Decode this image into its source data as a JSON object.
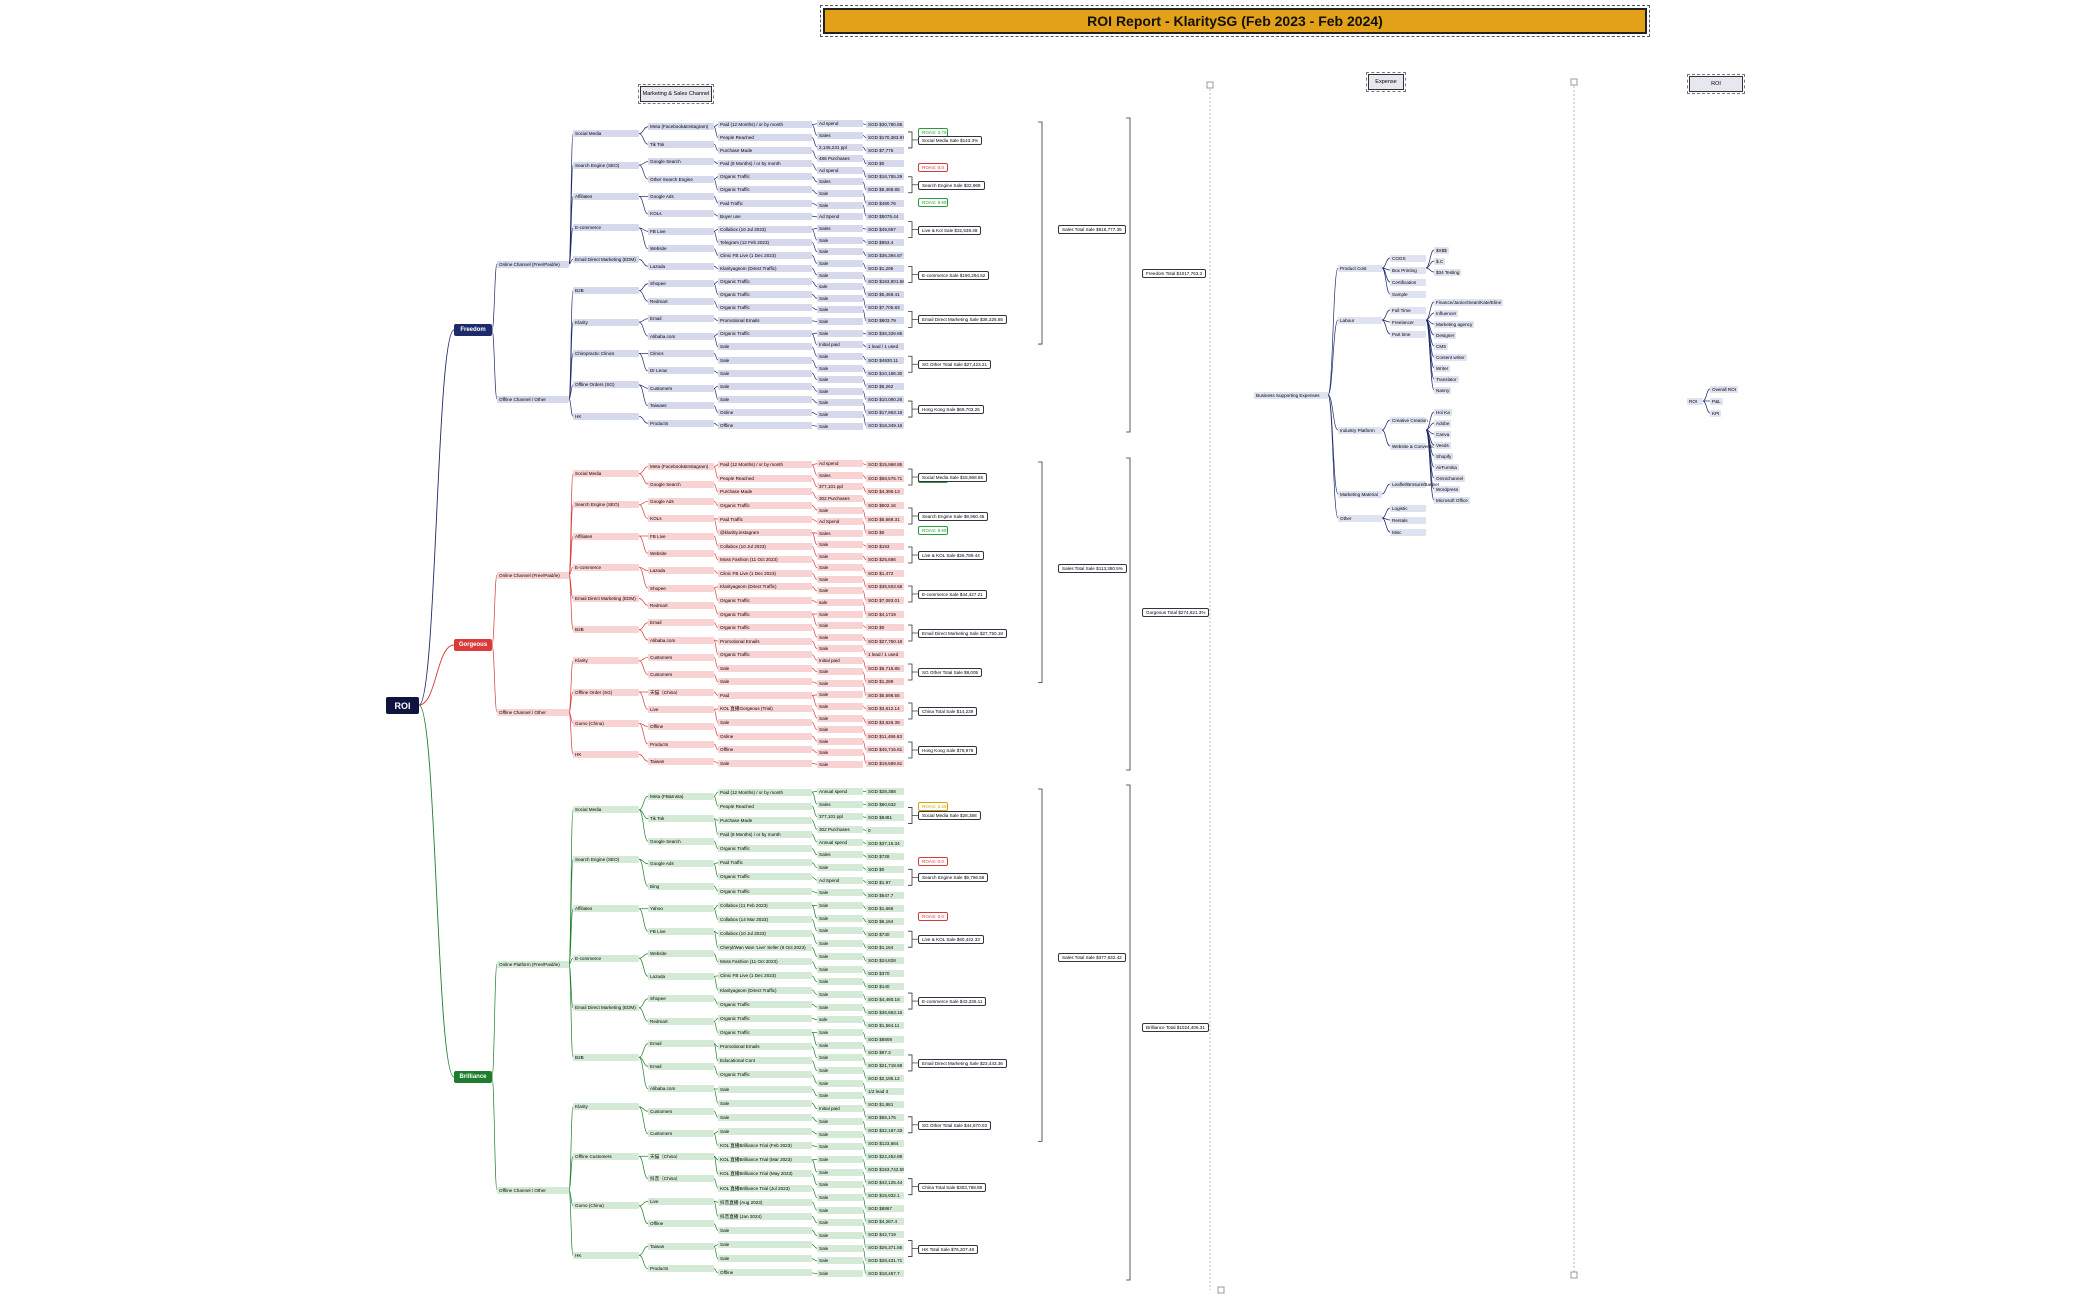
{
  "title": "ROI Report - KlaritySG (Feb 2023 - Feb 2024)",
  "headers": {
    "channel": "Marketing & Sales Channel",
    "expense": "Expense",
    "roi": "ROI"
  },
  "root": "ROI",
  "brands": {
    "freedom": {
      "label": "Freedom",
      "color": "#1f2a6b",
      "fill": "#d6d9ec"
    },
    "gorgeous": {
      "label": "Gorgeous",
      "color": "#d93a3a",
      "fill": "#f9d3d3"
    },
    "brilliance": {
      "label": "Brilliance",
      "color": "#1e7d2c",
      "fill": "#d5ead6"
    }
  },
  "freedom": {
    "channels": [
      "Online Channel (Free/Paid/ie)",
      "Offline Channel / Other"
    ],
    "l2": [
      "Social Media",
      "Search Engine (SEO)",
      "Affiliates",
      "E-commerce",
      "Email Direct Marketing (EDM)",
      "B2B",
      "Klarity",
      "Chiropractic Clinics",
      "Offline Orders (SG)",
      "HK"
    ],
    "l3": [
      "Meta (Facebook&Instagram)",
      "Tik Tok",
      "Google Search",
      "Other Search Engine",
      "Google Ads",
      "KOLs",
      "FB Live",
      "Website",
      "Lazada",
      "Shopee",
      "Redmart",
      "Email",
      "Alibaba.com",
      "Clinics",
      "Dr Leow",
      "Customers",
      "Taiwaes",
      "Products"
    ],
    "l4": [
      "Paid (12 Months) / or by month",
      "People Reached",
      "Purchase Made",
      "Paid (8 Months) / or by month",
      "Organic Traffic",
      "Organic Traffic",
      "Paid Traffic",
      "Buyer use",
      "Collabox (10 Jul 2023)",
      "Telegram (12 Feb 2023)",
      "Clinic FB Live (1 Dec 2023)",
      "Klarityagsom (Direct Traffic)",
      "Organic Traffic",
      "Organic Traffic",
      "Organic Traffic",
      "Promotional Emails",
      "Organic Traffic",
      "Sale",
      "Sale",
      "Sale",
      "Sale",
      "Sale",
      "Online",
      "Offline"
    ],
    "l5": [
      "Ad spend",
      "Sales",
      "2,145,231 ppl",
      "486 Purchases",
      "Ad spend",
      "Sales",
      "Sale",
      "Sale",
      "Ad Spend",
      "Sales",
      "Sale",
      "Sale",
      "Sale",
      "Sale",
      "sale",
      "Sale",
      "Sale",
      "Sale",
      "Sale",
      "Initial paid",
      "Sale",
      "Sale",
      "Sale",
      "Sale",
      "Sale",
      "Sale",
      "Sale"
    ],
    "l6": [
      "SGD $30,780.85",
      "SGD $170,383.97",
      "SGD $7,775",
      "SGD $0",
      "SGD $16,755.29",
      "SGD $5,468.85",
      "SGD $480.76",
      "SGD $5075.44",
      "SGD $49,957",
      "SGD $953.4",
      "SGD $36,394.67",
      "SGD $1,295",
      "SGD $163,901.58",
      "SGD $5,469.41",
      "SGD $7,705.83",
      "SGD $803.79",
      "SGD $36,326.85",
      "1 lead / 1 used",
      "SGD $4930.11",
      "SGD $10,186.30",
      "SGD $5,262",
      "SGD $10,090.26",
      "SGD $17,963.18",
      "SGD $18,349.16"
    ],
    "roas": [
      "ROAS: 3.79",
      "ROAS: 0.0",
      "ROAS: 9.69"
    ],
    "totals": [
      "Social Media Sale $143.3%",
      "Search Engine Sale $32,969",
      "Live & Kol Sale $32,538.48",
      "E-commerce Sale $190,294.52",
      "Email Direct Marketing Sale $36,326.85",
      "SG Other Total Sale $27,423.21",
      "Hong Kong Sale $69,703.26"
    ],
    "sum": "Sales Total Sale $616,777.35",
    "grand": "Freedom Total $1017,763.3"
  },
  "gorgeous": {
    "channels": [
      "Online Channel (Free/Paid/ie)",
      "Offline Channel / Other"
    ],
    "l2": [
      "Social Media",
      "Search Engine (SEO)",
      "Affiliates",
      "E-commerce",
      "Email Direct Marketing (EDM)",
      "B2B",
      "Klarity",
      "Offline Order (SG)",
      "Gumo (China)",
      "HK"
    ],
    "l3": [
      "Meta (Facebook&Instagram)",
      "Google Search",
      "Google Ads",
      "KOLs",
      "FB Live",
      "Website",
      "Lazada",
      "Shopee",
      "Redmart",
      "Email",
      "Alibaba.com",
      "Customers",
      "Customers",
      "天猫（China）",
      "Live",
      "Offline",
      "Products",
      "Taiwan"
    ],
    "l4": [
      "Paid (12 Months) / or by month",
      "People Reached",
      "Purchase Made",
      "Organic Traffic",
      "Paid Traffic",
      "@klaritty.instagram",
      "Collabox (10 Jul 2023)",
      "Moss Fashion (11 Oct 2023)",
      "Clinic FB Live (1 Dec 2023)",
      "Klarityagsom (Direct Traffic)",
      "Organic Traffic",
      "Organic Traffic",
      "Organic Traffic",
      "Promotional Emails",
      "Organic Traffic",
      "Sale",
      "Sale",
      "Paid",
      "KOL 直播Gorgeous (Trial)",
      "Sale",
      "Online",
      "Offline",
      "Sale"
    ],
    "l5": [
      "Ad spend",
      "Sales",
      "377,101 ppl",
      "302 Purchases",
      "Sale",
      "Ad Spend",
      "Sales",
      "Sale",
      "Sale",
      "Sale",
      "Sale",
      "Sale",
      "sale",
      "Sale",
      "Sale",
      "Sale",
      "Sale",
      "Initial paid",
      "Sale",
      "Sale",
      "Sale",
      "Sale",
      "Sale",
      "Sale",
      "Sale",
      "Sale",
      "Sale"
    ],
    "l6": [
      "SGD $15,968.85",
      "SGD $58,575.71",
      "SGD $4,396.13",
      "SGD $502.16",
      "SGD $5,689.31",
      "SGD $0",
      "SGD $153",
      "SGD $25,686",
      "SGD $1,472",
      "SGD $35,503.58",
      "SGD $7,083.01",
      "SGD $4,1719",
      "SGD $0",
      "SGD $27,750.18",
      "1 lead / 1 used",
      "SGD $6,716.85",
      "SGD $1,289",
      "SGD $5,598.55",
      "SGD $3,612.14",
      "SGD $3,626.39",
      "SGD $11,486.63",
      "SGD $45,716.61",
      "SGD $19,589.61"
    ],
    "roas": [
      "ROAS: 3.51",
      "ROAS: 9.69"
    ],
    "totals": [
      "Social Media Sale $15,968.85",
      "Search Engine Sale $9,960.45",
      "Live & KOL Sale $26,789.44",
      "E-commerce Sale $44,427.21",
      "Email Direct Marketing Sale $27,750.18",
      "SG Other Total Sale $8,005",
      "China Total Sale $14,239",
      "Hong Kong Sale $78,976"
    ],
    "sum": "Sales Total Sale $113,380.5%",
    "grand": "Gorgeous Total $274,621.3%"
  },
  "brilliance": {
    "channels": [
      "Online Platform (Free/Paid/ie)",
      "Offline Channel / Other"
    ],
    "l2": [
      "Social Media",
      "Search Engine (SEO)",
      "Affiliates",
      "E-commerce",
      "Email Direct Marketing (EDM)",
      "B2B",
      "Klarity",
      "Offline Customers",
      "Gumo (China)",
      "HK"
    ],
    "l3": [
      "Meta (FB&Insta)",
      "Tik Tok",
      "Google Search",
      "Google Ads",
      "Bing",
      "Yahoo",
      "FB Live",
      "Website",
      "Lazada",
      "Shopee",
      "Redmart",
      "Email",
      "Email",
      "Alibaba.com",
      "Customers",
      "Customers",
      "天猫（China）",
      "抖音（China）",
      "Live",
      "Offline",
      "Taiwan",
      "Products"
    ],
    "l4": [
      "Paid (12 Months) / or by month",
      "People Reached",
      "Purchase Made",
      "Paid (8 Months) / or by month",
      "Organic Traffic",
      "Paid Traffic",
      "Organic Traffic",
      "Organic Traffic",
      "Collabox (11 Feb 2023)",
      "Collabox (14 Mar 2023)",
      "Collabox (10 Jul 2023)",
      "Cheryl/Wan Wan 'Live' Seller (8 Oct 2023)",
      "Moss Fashion (11 Oct 2023)",
      "Clinic FB Live (1 Dec 2023)",
      "Klarityagsom (Direct Traffic)",
      "Organic Traffic",
      "Organic Traffic",
      "Organic Traffic",
      "Promotional Emails",
      "Educational Cont",
      "Organic Traffic",
      "Sale",
      "Sale",
      "Sale",
      "Sale",
      "KOL 直播Brilliance Trial (Feb 2023)",
      "KOL 直播Brilliance Trial (Mar 2023)",
      "KOL 直播Brilliance Trial (May 2023)",
      "KOL 直播Brilliance Trial (Jul 2023)",
      "抖音直播 (Aug 2023)",
      "抖音直播 (Jan 2024)",
      "Sale",
      "Sale",
      "Sale",
      "Offline"
    ],
    "l5": [
      "Annual spend",
      "Sales",
      "377,101 ppl",
      "302 Purchases",
      "Annual spend",
      "Sales",
      "Sale",
      "Ad Spend",
      "Sale",
      "Sale",
      "Sale",
      "Sale",
      "Sale",
      "Sale",
      "Sale",
      "Sale",
      "Sale",
      "Sale",
      "sale",
      "Sale",
      "Sale",
      "Sale",
      "Sale",
      "Sale",
      "Sale",
      "Initial paid",
      "Sale",
      "Sale",
      "Sale",
      "Sale",
      "Sale",
      "Sale",
      "Sale",
      "Sale",
      "Sale",
      "Sale",
      "Sale",
      "Sale",
      "Sale"
    ],
    "l6": [
      "SGD $28,388",
      "SGD $60,632",
      "SGD $8481",
      "0",
      "SGD $37,15.34",
      "SGD $728",
      "SGD $0",
      "SGD $1.97",
      "SGD $547.7",
      "SGD $1,666",
      "SGD $6,164",
      "SGD $730",
      "SGD $1,164",
      "SGD $24,828",
      "SGD $370",
      "SGD $140",
      "SGD $4,480.18",
      "SGD $36,863.16",
      "SGD $1,564.11",
      "SGD $8808",
      "SGD $97.3",
      "SGD $21,718.68",
      "SGD $2,195.12",
      "1/2 lead 3",
      "SGD $1,881",
      "SGD $65,175",
      "SGD $32,187.33",
      "SGD $123,664",
      "SGD $22,452.89",
      "SGD $153,742.55",
      "SGD $42,125.44",
      "SGD $15,932.1",
      "SGD $8867",
      "SGD $4,267.4",
      "SGD $42,719",
      "SGD $26,371.55",
      "SGD $28,431.71",
      "SGD $18,467.7"
    ],
    "roas": [
      "ROAS: 2.29",
      "ROAS: 0.0",
      "ROAS: 0.0"
    ],
    "totals": [
      "Social Media Sale $28,388",
      "Search Engine Sale $9,786.56",
      "Live & KOL Sale $60,442.33",
      "E-commerce Sale $43,336.11",
      "Email Direct Marketing Sale $23,443.36",
      "SG Other Total Sale $44,670.03",
      "China Total Sale $303,768.88",
      "HK Total Sale $76,207.48"
    ],
    "sum": "Sales Total Sale $377,632.42",
    "grand": "Brilliance Total $1024,406.31"
  },
  "expense": {
    "root": "Business Supporting Expenses",
    "groups": [
      {
        "label": "Product Cost",
        "items": [
          "COGS",
          "Box Printing",
          "Certification",
          "Sample"
        ],
        "sub": [
          "$X$$",
          "$.C",
          "$34 Testing"
        ]
      },
      {
        "label": "Labour",
        "items": [
          "Full Time",
          "Freelancer",
          "Part time"
        ],
        "sub": [
          "Finance/Janice/Sean/Kate/Eline",
          "Influencer",
          "Marketing agency",
          "Designer",
          "CMS",
          "Content writer",
          "Writer",
          "Translator",
          "Nanny"
        ]
      },
      {
        "label": "Industry Platform",
        "items": [
          "Creative Creation",
          "Website & Conversion"
        ],
        "sub": [
          "Hoi Ka",
          "Adobe",
          "Canva",
          "Veeds",
          "Shopify",
          "AirFurnitia",
          "Omnichannel",
          "Wordpress",
          "Microsoft Office"
        ]
      },
      {
        "label": "Marketing Material",
        "items": [
          "Leaflet/Brosure/Banner"
        ]
      },
      {
        "label": "Other",
        "items": [
          "Logistic",
          "Rentals",
          "Misc"
        ]
      }
    ]
  },
  "roi": {
    "root": "ROI",
    "items": [
      "Overall ROI",
      "P&L",
      "KPI"
    ]
  }
}
